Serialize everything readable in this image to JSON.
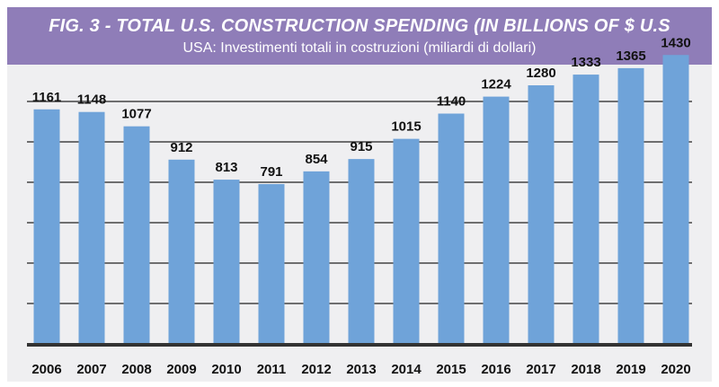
{
  "header": {
    "title": "FIG. 3 - TOTAL U.S. CONSTRUCTION SPENDING (IN BILLIONS OF $ U.S",
    "subtitle": "USA: Investimenti totali in costruzioni (miliardi di dollari)"
  },
  "colors": {
    "header_bg": "#8f7db8",
    "panel_bg": "#efeff1",
    "bar": "#6fa3d9",
    "gridline": "#222222",
    "axis": "#333333"
  },
  "chart_data": {
    "type": "bar",
    "title": "FIG. 3 - TOTAL U.S. CONSTRUCTION SPENDING (IN BILLIONS OF $ U.S",
    "subtitle": "USA: Investimenti totali in costruzioni (miliardi di dollari)",
    "categories": [
      "2006",
      "2007",
      "2008",
      "2009",
      "2010",
      "2011",
      "2012",
      "2013",
      "2014",
      "2015",
      "2016",
      "2017",
      "2018",
      "2019",
      "2020"
    ],
    "values": [
      1161,
      1148,
      1077,
      912,
      813,
      791,
      854,
      915,
      1015,
      1140,
      1224,
      1280,
      1333,
      1365,
      1430
    ],
    "data_labels": [
      "1161",
      "1148",
      "1077",
      "912",
      "813",
      "791",
      "854",
      "915",
      "1015",
      "1140",
      "1224",
      "1280",
      "1333",
      "1365",
      "1430"
    ],
    "xlabel": "",
    "ylabel": "",
    "y_axis_labels_shown": false,
    "ylim": [
      0,
      1600
    ],
    "grid": true,
    "legend": "none"
  }
}
